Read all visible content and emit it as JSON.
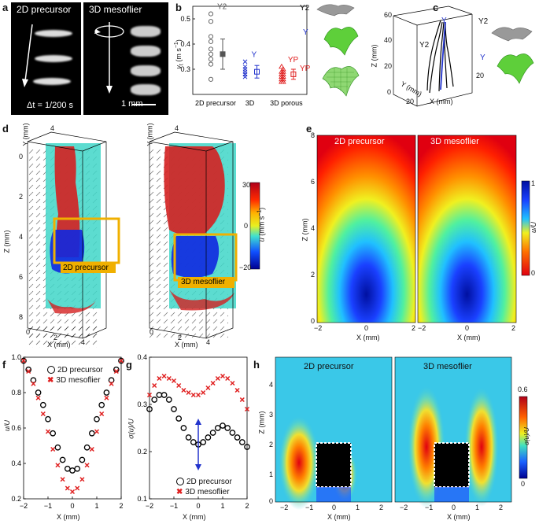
{
  "panels": {
    "a": {
      "label": "a",
      "left_title": "2D precursor",
      "right_title": "3D mesoflier",
      "dt_label": "Δt = 1/200 s",
      "scale_label": "1 mm"
    },
    "b": {
      "label": "b",
      "ylabel": "v",
      "ylabel_sub": "t",
      "ylabel_unit": "(m s",
      "ylabel_exp": "−1",
      "ylabel_close": ")",
      "yticks": [
        "0.5",
        "0.4",
        "0.3"
      ],
      "categories": [
        "2D precursor",
        "3D",
        "3D porous"
      ],
      "series_labels": [
        "Y2",
        "Y",
        "YP"
      ],
      "legend_labels": [
        "Y2",
        "Y",
        "YP"
      ],
      "colors": {
        "y2": "#555555",
        "y": "#2233cc",
        "yp": "#e02020"
      }
    },
    "c": {
      "label": "c",
      "zlabel": "Z (mm)",
      "zticks": [
        "60",
        "40",
        "20",
        "0"
      ],
      "ylabel": "Y (mm)",
      "yticks": [
        "20"
      ],
      "xlabel": "X (mm)",
      "xtick": "20",
      "rtick": "20",
      "trace_labels": [
        "Y2",
        "Y"
      ],
      "legend_labels": [
        "Y2",
        "Y"
      ]
    },
    "d": {
      "label": "d",
      "ylabel": "Y (mm)",
      "zlabel": "Z (mm)",
      "xlabel": "X (mm)",
      "zticks": [
        "0",
        "2",
        "4",
        "6",
        "8"
      ],
      "xticks": [
        "0",
        "2",
        "4"
      ],
      "ytick": "4",
      "box_labels": [
        "2D precursor",
        "3D mesoflier"
      ],
      "cbar_label": "u",
      "cbar_unit": "(mm s",
      "cbar_exp": "−1",
      "cbar_close": ")",
      "cbar_ticks": [
        "30",
        "0",
        "−20"
      ]
    },
    "e": {
      "label": "e",
      "titles": [
        "2D precursor",
        "3D mesoflier"
      ],
      "zlabel": "Z (mm)",
      "zticks": [
        "8",
        "6",
        "4",
        "2",
        "0"
      ],
      "xlabel": "X (mm)",
      "xticks": [
        "−2",
        "0",
        "2"
      ],
      "cbar_label": "u/U",
      "cbar_ticks": [
        "1",
        "0"
      ]
    },
    "f": {
      "label": "f",
      "ylabel": "u/U",
      "xlabel": "X (mm)",
      "yticks": [
        "1.0",
        "0.8",
        "0.6",
        "0.4",
        "0.2"
      ],
      "xticks": [
        "−2",
        "−1",
        "0",
        "1",
        "2"
      ],
      "legend": [
        "2D precursor",
        "3D mesoflier"
      ]
    },
    "g": {
      "label": "g",
      "ylabel": "σ(u)/U",
      "xlabel": "X (mm)",
      "yticks": [
        "0.4",
        "0.3",
        "0.2",
        "0.1"
      ],
      "xticks": [
        "−2",
        "−1",
        "0",
        "1",
        "2"
      ],
      "legend": [
        "2D precursor",
        "3D mesoflier"
      ]
    },
    "h": {
      "label": "h",
      "titles": [
        "2D precursor",
        "3D mesoflier"
      ],
      "zlabel": "Z (mm)",
      "zticks": [
        "4",
        "3",
        "2",
        "1",
        "0"
      ],
      "xlabel": "X (mm)",
      "xticks": [
        "−2",
        "−1",
        "0",
        "1",
        "2"
      ],
      "cbar_label": "σ(u)/U",
      "cbar_ticks": [
        "0.6",
        "0"
      ]
    }
  },
  "chart_data": [
    {
      "type": "scatter",
      "panel": "b",
      "categories": [
        "2D precursor",
        "3D",
        "3D porous"
      ],
      "ylim": [
        0.2,
        0.55
      ],
      "series": [
        {
          "name": "Y2",
          "values": [
            0.52,
            0.49,
            0.43,
            0.41,
            0.38,
            0.36,
            0.34,
            0.32,
            0.26
          ],
          "mean": 0.36,
          "err": 0.06
        },
        {
          "name": "Y",
          "values": [
            0.33,
            0.31,
            0.3,
            0.29,
            0.28,
            0.28,
            0.27
          ],
          "mean": 0.29,
          "err": 0.025
        },
        {
          "name": "YP",
          "values": [
            0.31,
            0.3,
            0.29,
            0.29,
            0.28,
            0.28,
            0.27,
            0.27,
            0.26,
            0.26,
            0.25,
            0.25
          ],
          "mean": 0.28,
          "err": 0.02
        }
      ]
    },
    {
      "type": "scatter",
      "panel": "f",
      "xlim": [
        -2,
        2
      ],
      "ylim": [
        0.2,
        1.0
      ],
      "series": [
        {
          "name": "2D precursor",
          "x": [
            -2.0,
            -1.8,
            -1.6,
            -1.4,
            -1.2,
            -1.0,
            -0.8,
            -0.6,
            -0.4,
            -0.2,
            0.0,
            0.2,
            0.4,
            0.6,
            0.8,
            1.0,
            1.2,
            1.4,
            1.6,
            1.8,
            2.0
          ],
          "y": [
            0.98,
            0.93,
            0.87,
            0.8,
            0.73,
            0.65,
            0.57,
            0.49,
            0.42,
            0.37,
            0.36,
            0.37,
            0.42,
            0.49,
            0.57,
            0.65,
            0.73,
            0.8,
            0.87,
            0.93,
            0.98
          ]
        },
        {
          "name": "3D mesoflier",
          "x": [
            -2.0,
            -1.8,
            -1.6,
            -1.4,
            -1.2,
            -1.0,
            -0.8,
            -0.6,
            -0.4,
            -0.2,
            0.0,
            0.2,
            0.4,
            0.6,
            0.8,
            1.0,
            1.2,
            1.4,
            1.6,
            1.8,
            2.0
          ],
          "y": [
            0.98,
            0.92,
            0.85,
            0.77,
            0.68,
            0.58,
            0.48,
            0.39,
            0.31,
            0.26,
            0.24,
            0.26,
            0.31,
            0.39,
            0.48,
            0.58,
            0.68,
            0.77,
            0.85,
            0.92,
            0.98
          ]
        }
      ]
    },
    {
      "type": "scatter",
      "panel": "g",
      "xlim": [
        -2,
        2
      ],
      "ylim": [
        0.1,
        0.4
      ],
      "series": [
        {
          "name": "2D precursor",
          "x": [
            -2.0,
            -1.8,
            -1.6,
            -1.4,
            -1.2,
            -1.0,
            -0.8,
            -0.6,
            -0.4,
            -0.2,
            0.0,
            0.2,
            0.4,
            0.6,
            0.8,
            1.0,
            1.2,
            1.4,
            1.6,
            1.8,
            2.0
          ],
          "y": [
            0.29,
            0.31,
            0.32,
            0.32,
            0.31,
            0.29,
            0.27,
            0.25,
            0.23,
            0.22,
            0.215,
            0.22,
            0.23,
            0.24,
            0.25,
            0.255,
            0.25,
            0.24,
            0.23,
            0.22,
            0.21
          ]
        },
        {
          "name": "3D mesoflier",
          "x": [
            -2.0,
            -1.8,
            -1.6,
            -1.4,
            -1.2,
            -1.0,
            -0.8,
            -0.6,
            -0.4,
            -0.2,
            0.0,
            0.2,
            0.4,
            0.6,
            0.8,
            1.0,
            1.2,
            1.4,
            1.6,
            1.8,
            2.0
          ],
          "y": [
            0.32,
            0.34,
            0.355,
            0.36,
            0.355,
            0.35,
            0.34,
            0.33,
            0.325,
            0.32,
            0.32,
            0.325,
            0.335,
            0.345,
            0.355,
            0.36,
            0.355,
            0.345,
            0.33,
            0.31,
            0.29
          ]
        }
      ]
    }
  ]
}
